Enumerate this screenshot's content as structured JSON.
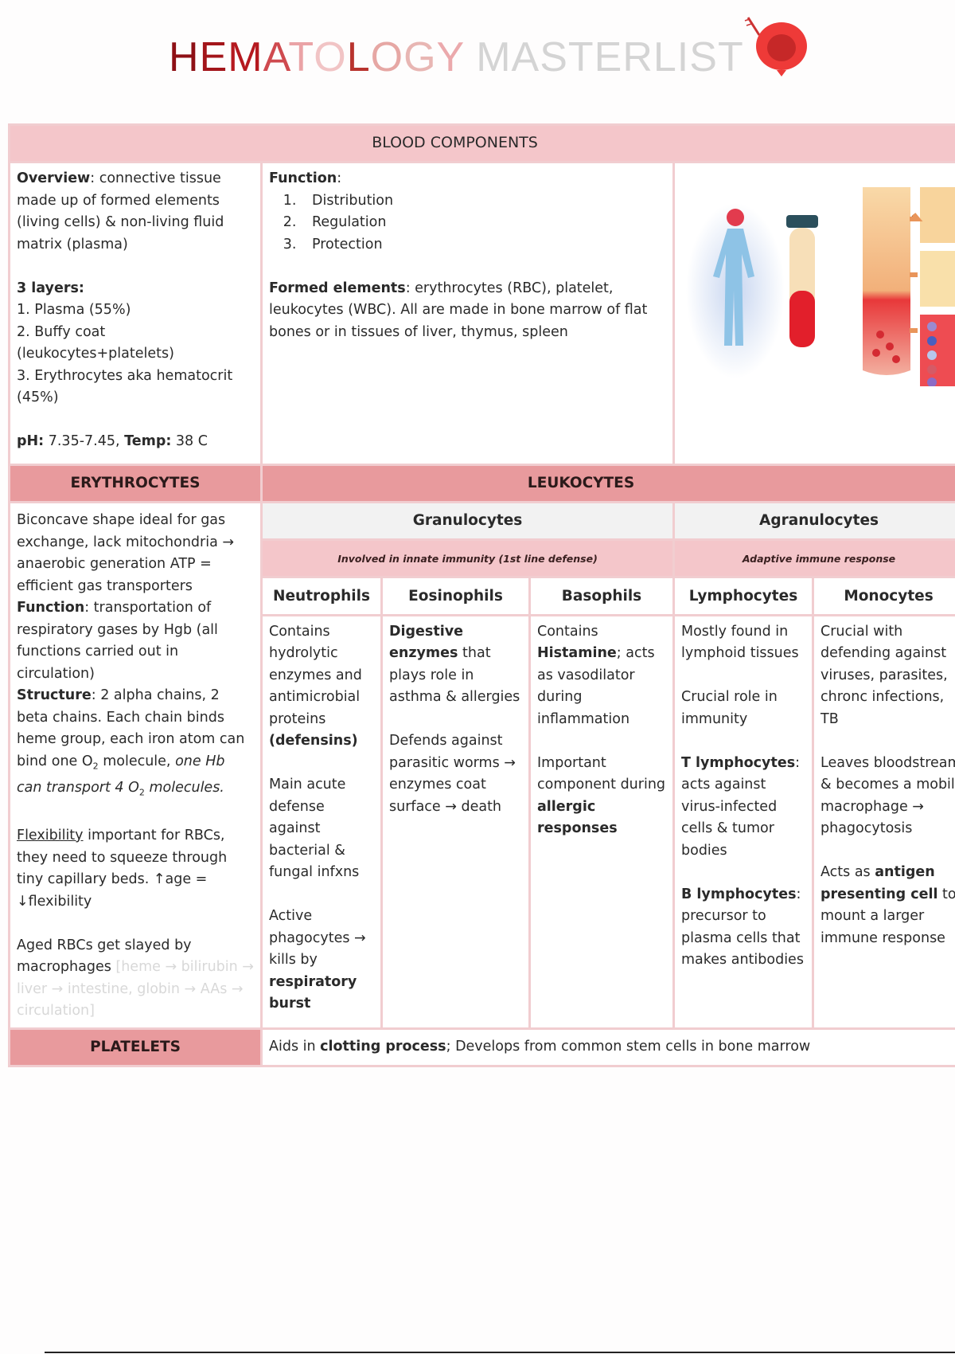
{
  "title": {
    "part1": "HEMATOLOGY",
    "part2": "MASTERLIST",
    "part1_colors": [
      "#8e1015",
      "#a3151a",
      "#b5191f",
      "#cf4a4f",
      "#eaa3a6",
      "#f1c4c5",
      "#b8332d",
      "#e6a7a4",
      "#e8b6b3",
      "#eba9ac"
    ],
    "logo": "red-blood-cell-mascot"
  },
  "colors": {
    "header_light": "#f4c6ca",
    "header_dark": "#e89a9d",
    "border": "#f1cdd0",
    "header_grey": "#f2f2f2"
  },
  "blood_components": {
    "header": "BLOOD COMPONENTS",
    "overview": [
      [
        [
          "Overview",
          "b"
        ],
        [
          ": connective tissue made up of formed elements (living cells) & non-living fluid matrix (plasma)",
          ""
        ]
      ],
      [],
      [
        [
          "3 layers:",
          "b"
        ]
      ],
      [
        [
          "1. Plasma (55%)",
          ""
        ]
      ],
      [
        [
          "2. Buffy coat (leukocytes+platelets)",
          ""
        ]
      ],
      [
        [
          "3. Erythrocytes aka hematocrit (45%)",
          ""
        ]
      ],
      [],
      [
        [
          "pH:",
          "b"
        ],
        [
          " 7.35-7.45, ",
          ""
        ],
        [
          "Temp:",
          "b"
        ],
        [
          " 38 C",
          ""
        ]
      ]
    ],
    "function_label": "Function",
    "functions": [
      "Distribution",
      "Regulation",
      "Protection"
    ],
    "formed": [
      [
        [
          "Formed elements",
          "b"
        ],
        [
          ": erythrocytes (RBC), platelet, leukocytes (WBC). All are made in bone marrow of flat bones or in tissues of liver, thymus, spleen",
          ""
        ]
      ]
    ],
    "image": "blood-composition-diagram"
  },
  "erythrocytes": {
    "header": "ERYTHROCYTES",
    "content": [
      [
        [
          "Biconcave shape ideal for gas exchange, lack mitochondria → anaerobic generation ATP = efficient gas transporters",
          ""
        ]
      ],
      [
        [
          "Function",
          "b"
        ],
        [
          ": transportation of respiratory gases by Hgb (all functions carried out in circulation)",
          ""
        ]
      ],
      [
        [
          "Structure",
          "b"
        ],
        [
          ": 2 alpha chains, 2 beta chains. Each chain binds heme group, each iron atom can bind one O",
          ""
        ],
        [
          "2",
          "sub"
        ],
        [
          " molecule, ",
          ""
        ],
        [
          "one Hb can transport 4 O",
          "i"
        ],
        [
          "2",
          "sub"
        ],
        [
          " molecules.",
          "i"
        ]
      ],
      [],
      [
        [
          "Flexibility",
          "u"
        ],
        [
          " important for RBCs, they need to squeeze through tiny capillary beds. ↑age = ↓flexibility",
          ""
        ]
      ],
      [],
      [
        [
          "Aged RBCs get slayed by macrophages ",
          ""
        ],
        [
          "[heme → bilirubin → liver → intestine, globin → AAs → circulation]",
          "faint"
        ]
      ]
    ]
  },
  "leukocytes": {
    "header": "LEUKOCYTES",
    "granulocytes": "Granulocytes",
    "agranulocytes": "Agranulocytes",
    "granulocytes_note": "Involved in innate immunity (1st line defense)",
    "agranulocytes_note": "Adaptive immune response",
    "cells": [
      {
        "name": "Neutrophils",
        "content": [
          [
            [
              "Contains hydrolytic enzymes and antimicrobial proteins ",
              ""
            ],
            [
              "(defensins)",
              "b"
            ]
          ],
          [],
          [
            [
              "Main acute defense against bacterial & fungal infxns",
              ""
            ]
          ],
          [],
          [
            [
              "Active phagocytes → kills by ",
              ""
            ],
            [
              "respiratory burst",
              "b"
            ]
          ]
        ]
      },
      {
        "name": "Eosinophils",
        "content": [
          [
            [
              "Digestive enzymes",
              "b"
            ],
            [
              " that plays role in asthma & allergies",
              ""
            ]
          ],
          [],
          [
            [
              "Defends against parasitic worms → enzymes coat surface → death",
              ""
            ]
          ]
        ]
      },
      {
        "name": "Basophils",
        "content": [
          [
            [
              "Contains ",
              ""
            ],
            [
              "Histamine",
              "b"
            ],
            [
              "; acts as vasodilator during inflammation",
              ""
            ]
          ],
          [],
          [
            [
              "Important component during ",
              ""
            ],
            [
              "allergic responses",
              "b"
            ]
          ]
        ]
      },
      {
        "name": "Lymphocytes",
        "content": [
          [
            [
              "Mostly found in lymphoid tissues",
              ""
            ]
          ],
          [],
          [
            [
              "Crucial role in immunity",
              ""
            ]
          ],
          [],
          [
            [
              "T lymphocytes",
              "b"
            ],
            [
              ": acts against virus-infected cells & tumor bodies",
              ""
            ]
          ],
          [],
          [
            [
              "B lymphocytes",
              "b"
            ],
            [
              ": precursor to plasma cells that makes antibodies",
              ""
            ]
          ]
        ]
      },
      {
        "name": "Monocytes",
        "content": [
          [
            [
              "Crucial with defending against viruses, parasites, chronc infections, TB",
              ""
            ]
          ],
          [],
          [
            [
              "Leaves bloodstream & becomes a mobile macrophage → phagocytosis",
              ""
            ]
          ],
          [],
          [
            [
              "Acts as ",
              ""
            ],
            [
              "antigen presenting cell",
              "b"
            ],
            [
              " to mount a larger immune response",
              ""
            ]
          ]
        ]
      }
    ]
  },
  "platelets": {
    "header": "PLATELETS",
    "content": [
      [
        [
          "Aids in ",
          ""
        ],
        [
          "clotting process",
          "b"
        ],
        [
          "; Develops from common stem cells in bone marrow",
          ""
        ]
      ]
    ]
  }
}
